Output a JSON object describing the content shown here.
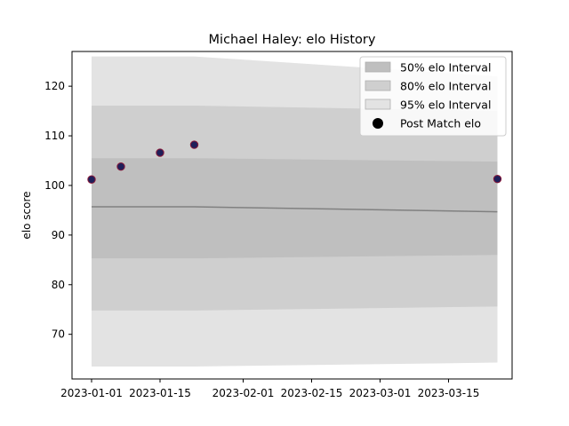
{
  "chart_data": {
    "type": "area",
    "title": "Michael Haley: elo History",
    "xlabel": "",
    "ylabel": "elo score",
    "xlim": [
      "2022-12-28",
      "2023-03-28"
    ],
    "ylim": [
      61,
      127
    ],
    "x_ticks": [
      "2023-01-01",
      "2023-01-15",
      "2023-02-01",
      "2023-02-15",
      "2023-03-01",
      "2023-03-15"
    ],
    "y_ticks": [
      70,
      80,
      90,
      100,
      110,
      120
    ],
    "grid": false,
    "legend_position": "top-right",
    "legend": [
      "50% elo Interval",
      "80% elo Interval",
      "95% elo Interval",
      "Post Match elo"
    ],
    "x": [
      "2023-01-01",
      "2023-01-22",
      "2023-03-25"
    ],
    "mean": [
      95.7,
      95.7,
      94.7
    ],
    "bands": [
      {
        "name": "95% elo Interval",
        "lower": [
          63.5,
          63.5,
          64.3
        ],
        "upper": [
          126.0,
          126.0,
          122.0
        ],
        "color": "#e3e3e3"
      },
      {
        "name": "80% elo Interval",
        "lower": [
          74.8,
          74.8,
          75.6
        ],
        "upper": [
          116.1,
          116.1,
          115.0
        ],
        "color": "#cfcfcf"
      },
      {
        "name": "50% elo Interval",
        "lower": [
          85.3,
          85.3,
          86.0
        ],
        "upper": [
          105.5,
          105.5,
          104.8
        ],
        "color": "#bfbfbf"
      }
    ],
    "series": [
      {
        "name": "Post Match elo",
        "x": [
          "2023-01-01",
          "2023-01-07",
          "2023-01-15",
          "2023-01-22",
          "2023-03-25"
        ],
        "values": [
          101.2,
          103.8,
          106.6,
          108.2,
          101.3
        ]
      }
    ],
    "colors": {
      "mean_line": "#808080",
      "point_fill": "#1f1f5a",
      "point_edge": "#8b1a3a",
      "band_50": "#bfbfbf",
      "band_80": "#cfcfcf",
      "band_95": "#e3e3e3"
    }
  }
}
